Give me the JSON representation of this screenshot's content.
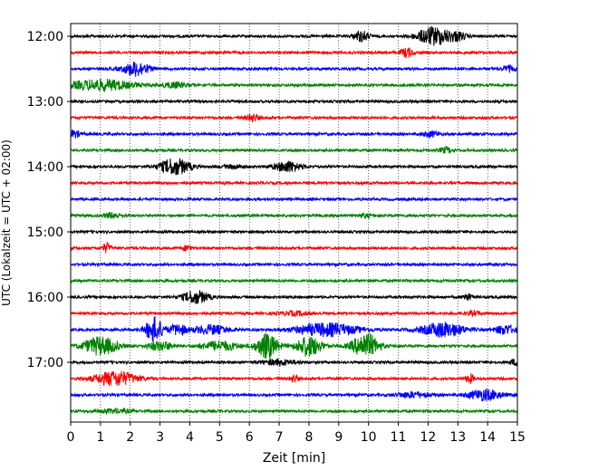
{
  "chart_data": {
    "type": "line",
    "chart_kind": "seismogram helicorder",
    "xlabel": "Zeit  [min]",
    "ylabel": "UTC (Lokalzeit = UTC + 02:00)",
    "xlim": [
      0,
      15
    ],
    "xticks": [
      0,
      1,
      2,
      3,
      4,
      5,
      6,
      7,
      8,
      9,
      10,
      11,
      12,
      13,
      14,
      15
    ],
    "vertical_gridlines": "dotted at each minute",
    "ytick_labels": [
      "12:00",
      "13:00",
      "14:00",
      "15:00",
      "16:00",
      "17:00"
    ],
    "rows_per_hour": 4,
    "row_minutes": 15,
    "color_cycle": [
      "#000000",
      "#ff0000",
      "#0000ff",
      "#008000"
    ],
    "traces": [
      {
        "start": "12:00",
        "bursts": [
          [
            9.75,
            0.35,
            6
          ],
          [
            12.2,
            0.8,
            10
          ],
          [
            13.0,
            0.4,
            4
          ]
        ]
      },
      {
        "start": "12:15",
        "bursts": [
          [
            11.3,
            0.3,
            5
          ]
        ]
      },
      {
        "start": "12:30",
        "bursts": [
          [
            2.2,
            0.6,
            8
          ],
          [
            14.7,
            0.3,
            3
          ]
        ]
      },
      {
        "start": "12:45",
        "bursts": [
          [
            1.0,
            1.5,
            6
          ],
          [
            3.5,
            0.6,
            3
          ]
        ]
      },
      {
        "start": "13:00",
        "bursts": []
      },
      {
        "start": "13:15",
        "bursts": [
          [
            6.1,
            0.3,
            4
          ]
        ]
      },
      {
        "start": "13:30",
        "bursts": [
          [
            0.1,
            0.3,
            4
          ],
          [
            12.1,
            0.4,
            3
          ]
        ]
      },
      {
        "start": "13:45",
        "bursts": [
          [
            12.6,
            0.3,
            3
          ]
        ]
      },
      {
        "start": "14:00",
        "bursts": [
          [
            3.5,
            0.7,
            9
          ],
          [
            7.3,
            0.6,
            6
          ],
          [
            5.5,
            0.5,
            2
          ]
        ]
      },
      {
        "start": "14:15",
        "bursts": []
      },
      {
        "start": "14:30",
        "bursts": []
      },
      {
        "start": "14:45",
        "bursts": [
          [
            1.4,
            0.4,
            3
          ],
          [
            9.9,
            0.3,
            2
          ]
        ]
      },
      {
        "start": "15:00",
        "bursts": []
      },
      {
        "start": "15:15",
        "bursts": [
          [
            1.2,
            0.2,
            5
          ],
          [
            3.9,
            0.2,
            3
          ]
        ]
      },
      {
        "start": "15:30",
        "bursts": []
      },
      {
        "start": "15:45",
        "bursts": []
      },
      {
        "start": "16:00",
        "bursts": [
          [
            4.2,
            0.6,
            7
          ],
          [
            13.3,
            0.2,
            4
          ]
        ]
      },
      {
        "start": "16:15",
        "bursts": [
          [
            7.5,
            0.8,
            2
          ],
          [
            13.5,
            0.4,
            2
          ]
        ]
      },
      {
        "start": "16:30",
        "bursts": [
          [
            2.8,
            0.4,
            14
          ],
          [
            3.6,
            0.4,
            6
          ],
          [
            4.7,
            0.8,
            5
          ],
          [
            8.6,
            1.5,
            7
          ],
          [
            12.5,
            1.0,
            8
          ],
          [
            14.6,
            0.5,
            5
          ]
        ]
      },
      {
        "start": "16:45",
        "bursts": [
          [
            1.0,
            0.8,
            10
          ],
          [
            6.6,
            0.5,
            14
          ],
          [
            8.0,
            0.6,
            11
          ],
          [
            9.9,
            0.6,
            14
          ],
          [
            3.0,
            0.6,
            5
          ],
          [
            5.0,
            0.9,
            5
          ]
        ]
      },
      {
        "start": "17:00",
        "bursts": [
          [
            7.0,
            0.8,
            3
          ],
          [
            14.9,
            0.2,
            3
          ]
        ]
      },
      {
        "start": "17:15",
        "bursts": [
          [
            1.5,
            1.0,
            8
          ],
          [
            13.4,
            0.2,
            5
          ],
          [
            7.5,
            0.2,
            4
          ]
        ]
      },
      {
        "start": "17:30",
        "bursts": [
          [
            13.9,
            0.8,
            6
          ],
          [
            11.5,
            0.8,
            3
          ]
        ]
      },
      {
        "start": "17:45",
        "bursts": [
          [
            1.5,
            0.8,
            2
          ]
        ]
      }
    ]
  }
}
